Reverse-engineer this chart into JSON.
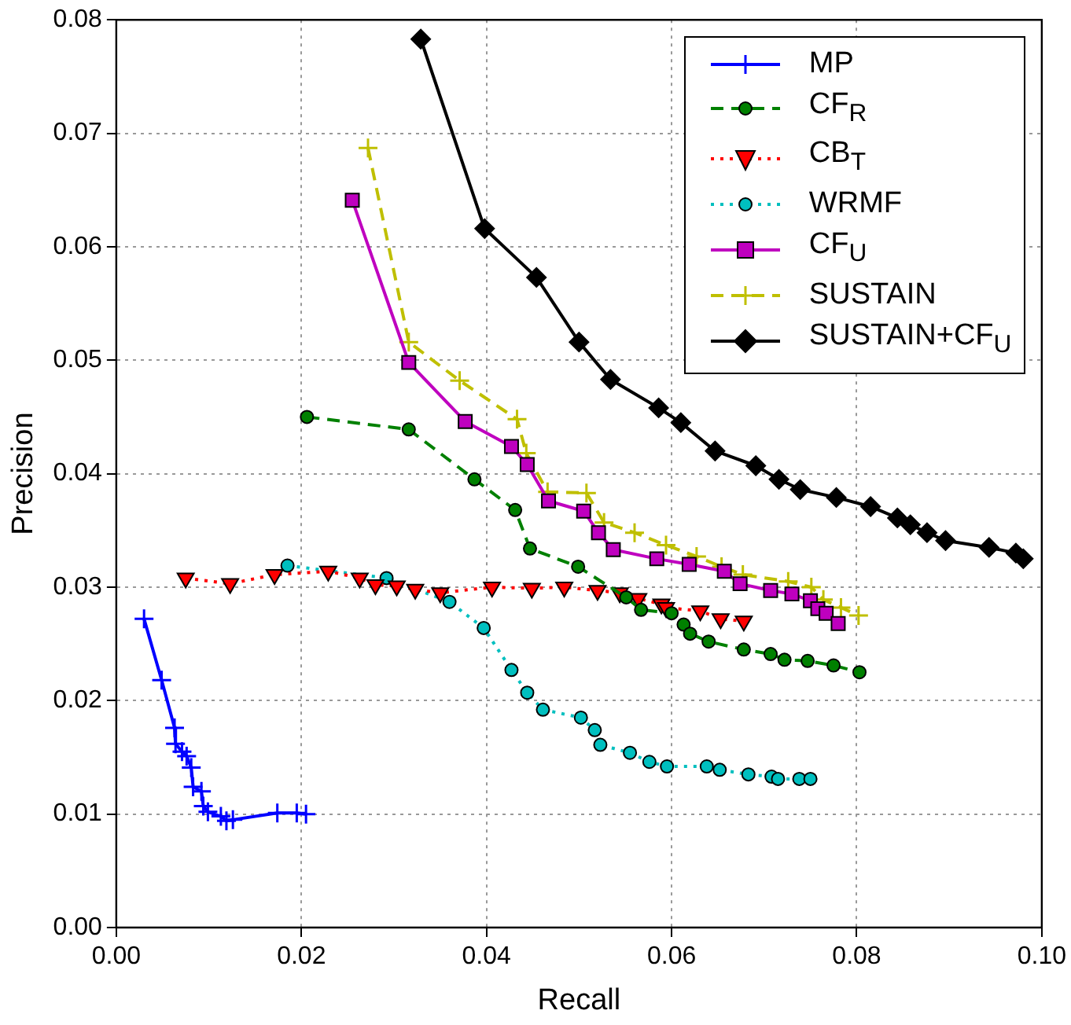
{
  "chart_data": {
    "type": "line",
    "xlabel": "Recall",
    "ylabel": "Precision",
    "xlim": [
      0,
      0.1
    ],
    "ylim": [
      0,
      0.08
    ],
    "xticks": [
      {
        "value": 0,
        "label": "0.00"
      },
      {
        "value": 0.02,
        "label": "0.02"
      },
      {
        "value": 0.04,
        "label": "0.04"
      },
      {
        "value": 0.06,
        "label": "0.06"
      },
      {
        "value": 0.08,
        "label": "0.08"
      },
      {
        "value": 0.1,
        "label": "0.10"
      }
    ],
    "yticks": [
      {
        "value": 0,
        "label": "0.00"
      },
      {
        "value": 0.01,
        "label": "0.01"
      },
      {
        "value": 0.02,
        "label": "0.02"
      },
      {
        "value": 0.03,
        "label": "0.03"
      },
      {
        "value": 0.04,
        "label": "0.04"
      },
      {
        "value": 0.05,
        "label": "0.05"
      },
      {
        "value": 0.06,
        "label": "0.06"
      },
      {
        "value": 0.07,
        "label": "0.07"
      },
      {
        "value": 0.08,
        "label": "0.08"
      }
    ],
    "grid": true,
    "legend": "top right",
    "series": [
      {
        "name": "MP",
        "color": "#0000ff",
        "marker": "cross",
        "line_style": "solid",
        "x": [
          0.003,
          0.0049,
          0.0063,
          0.0064,
          0.0071,
          0.0076,
          0.0081,
          0.0083,
          0.0092,
          0.0094,
          0.0099,
          0.0113,
          0.0119,
          0.0126,
          0.0174,
          0.0195,
          0.0205
        ],
        "values": [
          0.0272,
          0.0218,
          0.0176,
          0.0162,
          0.0155,
          0.0151,
          0.0141,
          0.0124,
          0.012,
          0.0107,
          0.0102,
          0.0098,
          0.0094,
          0.0095,
          0.0101,
          0.0101,
          0.01
        ]
      },
      {
        "name": "CF$_{R}$",
        "color": "#008000",
        "marker": "circle",
        "line_style": "dashed",
        "x": [
          0.0206,
          0.0316,
          0.0387,
          0.0431,
          0.0447,
          0.0499,
          0.0551,
          0.0567,
          0.06,
          0.0613,
          0.062,
          0.064,
          0.0678,
          0.0707,
          0.0722,
          0.0747,
          0.0775,
          0.0803
        ],
        "values": [
          0.045,
          0.0439,
          0.0395,
          0.0368,
          0.0334,
          0.0318,
          0.0291,
          0.028,
          0.0277,
          0.0267,
          0.0259,
          0.0252,
          0.0245,
          0.0241,
          0.0236,
          0.0235,
          0.0231,
          0.0225
        ]
      },
      {
        "name": "CB$_{T}$",
        "color": "#ff0000",
        "marker": "triangle",
        "line_style": "dotted",
        "x": [
          0.0075,
          0.0123,
          0.0171,
          0.0229,
          0.0263,
          0.028,
          0.0303,
          0.0323,
          0.035,
          0.0406,
          0.0449,
          0.0484,
          0.052,
          0.0544,
          0.0564,
          0.0589,
          0.0594,
          0.0631,
          0.0653,
          0.0678
        ],
        "values": [
          0.0308,
          0.0303,
          0.0311,
          0.0314,
          0.0308,
          0.0302,
          0.0301,
          0.0298,
          0.0295,
          0.03,
          0.0299,
          0.03,
          0.0297,
          0.0295,
          0.029,
          0.0285,
          0.0282,
          0.0279,
          0.0272,
          0.027
        ]
      },
      {
        "name": "WRMF",
        "color": "#00bfbf",
        "marker": "circle",
        "line_style": "dotted",
        "x": [
          0.0185,
          0.0292,
          0.036,
          0.0397,
          0.0427,
          0.0444,
          0.0461,
          0.0502,
          0.0517,
          0.0523,
          0.0555,
          0.0576,
          0.0595,
          0.0638,
          0.0652,
          0.0683,
          0.0708,
          0.0715,
          0.0738,
          0.075
        ],
        "values": [
          0.0319,
          0.0308,
          0.0287,
          0.0264,
          0.0227,
          0.0207,
          0.0192,
          0.0185,
          0.0174,
          0.0161,
          0.0154,
          0.0146,
          0.0142,
          0.0142,
          0.0139,
          0.0135,
          0.0133,
          0.0131,
          0.0131,
          0.0131
        ]
      },
      {
        "name": "CF$_{U}$",
        "color": "#bf00bf",
        "marker": "square",
        "line_style": "solid",
        "x": [
          0.0255,
          0.0316,
          0.0377,
          0.0427,
          0.0444,
          0.0467,
          0.0505,
          0.0521,
          0.0537,
          0.0584,
          0.0619,
          0.0657,
          0.0674,
          0.0707,
          0.073,
          0.075,
          0.0758,
          0.0767,
          0.078
        ],
        "values": [
          0.0641,
          0.0498,
          0.0446,
          0.0424,
          0.0408,
          0.0376,
          0.0367,
          0.0348,
          0.0333,
          0.0325,
          0.032,
          0.0314,
          0.0303,
          0.0297,
          0.0294,
          0.0288,
          0.0281,
          0.0277,
          0.0268
        ]
      },
      {
        "name": "SUSTAIN",
        "color": "#bfbf00",
        "marker": "cross",
        "line_style": "dashed",
        "x": [
          0.0272,
          0.0316,
          0.0371,
          0.0433,
          0.0443,
          0.0466,
          0.0508,
          0.0527,
          0.056,
          0.0594,
          0.0627,
          0.0654,
          0.0677,
          0.0726,
          0.0751,
          0.0764,
          0.0783,
          0.0802
        ],
        "values": [
          0.0687,
          0.0516,
          0.0482,
          0.0448,
          0.0418,
          0.0384,
          0.0383,
          0.0357,
          0.0348,
          0.0337,
          0.0327,
          0.0318,
          0.0311,
          0.0305,
          0.03,
          0.0289,
          0.0282,
          0.0275
        ]
      },
      {
        "name": "SUSTAIN+CF$_{U}$",
        "color": "#000000",
        "marker": "diamond",
        "line_style": "solid",
        "x": [
          0.0329,
          0.0398,
          0.0454,
          0.05,
          0.0534,
          0.0586,
          0.061,
          0.0647,
          0.0691,
          0.0716,
          0.0739,
          0.0778,
          0.0815,
          0.0844,
          0.0858,
          0.0876,
          0.0896,
          0.0943,
          0.0972,
          0.098
        ],
        "values": [
          0.0783,
          0.0616,
          0.0573,
          0.0516,
          0.0483,
          0.0458,
          0.0445,
          0.042,
          0.0407,
          0.0395,
          0.0386,
          0.0379,
          0.0371,
          0.0361,
          0.0355,
          0.0348,
          0.0341,
          0.0335,
          0.033,
          0.0325
        ]
      }
    ]
  }
}
